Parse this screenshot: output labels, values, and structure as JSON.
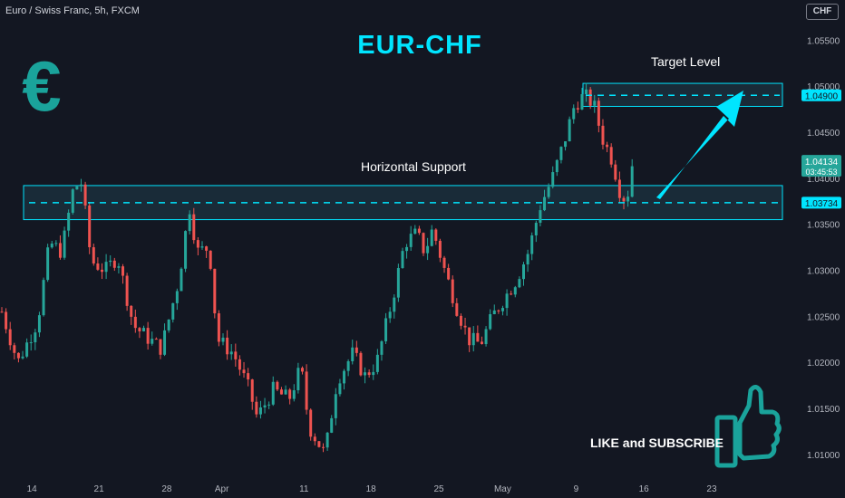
{
  "header": {
    "symbol": "Euro / Swiss Franc, 5h, FXCM",
    "currency": "CHF",
    "title": "EUR-CHF"
  },
  "annotations": {
    "support_label": "Horizontal Support",
    "target_label": "Target Level",
    "cta": "LIKE and SUBSCRIBE"
  },
  "icons": [
    "euro-icon",
    "thumbs-up-icon",
    "arrow-icon"
  ],
  "colors": {
    "background": "#131722",
    "up": "#26a69a",
    "down": "#ef5350",
    "accent": "#00e5ff",
    "zone_fill": "#1c3340",
    "euro_icon": "#1aa39b"
  },
  "chart_data": {
    "type": "candlestick",
    "title": "EUR-CHF",
    "y_ticks": [
      "1.05500",
      "1.05000",
      "1.04500",
      "1.04000",
      "1.03500",
      "1.03000",
      "1.02500",
      "1.02000",
      "1.01500",
      "1.01000"
    ],
    "ylim": [
      1.0095,
      1.0565
    ],
    "x_ticks": [
      {
        "label": "14",
        "t": 0.04
      },
      {
        "label": "21",
        "t": 0.124
      },
      {
        "label": "28",
        "t": 0.209
      },
      {
        "label": "Apr",
        "t": 0.278
      },
      {
        "label": "11",
        "t": 0.381
      },
      {
        "label": "18",
        "t": 0.465
      },
      {
        "label": "25",
        "t": 0.55
      },
      {
        "label": "May",
        "t": 0.63
      },
      {
        "label": "9",
        "t": 0.722
      },
      {
        "label": "16",
        "t": 0.807
      },
      {
        "label": "23",
        "t": 0.892
      }
    ],
    "support_level": 1.03734,
    "support_zone": [
      1.0355,
      1.0392
    ],
    "target_level": 1.049,
    "target_zone": [
      1.0478,
      1.0503
    ],
    "current_price": "1.04134",
    "countdown": "03:45:53",
    "anchors": [
      [
        0.0,
        1.0255
      ],
      [
        0.02,
        1.02
      ],
      [
        0.045,
        1.0245
      ],
      [
        0.06,
        1.033
      ],
      [
        0.075,
        1.032
      ],
      [
        0.09,
        1.039
      ],
      [
        0.1,
        1.0395
      ],
      [
        0.112,
        1.031
      ],
      [
        0.13,
        1.03
      ],
      [
        0.145,
        1.0315
      ],
      [
        0.165,
        1.024
      ],
      [
        0.185,
        1.0225
      ],
      [
        0.2,
        1.0215
      ],
      [
        0.222,
        1.029
      ],
      [
        0.235,
        1.037
      ],
      [
        0.245,
        1.032
      ],
      [
        0.26,
        1.0325
      ],
      [
        0.27,
        1.0225
      ],
      [
        0.29,
        1.021
      ],
      [
        0.31,
        1.017
      ],
      [
        0.32,
        1.014
      ],
      [
        0.34,
        1.017
      ],
      [
        0.36,
        1.016
      ],
      [
        0.375,
        1.0195
      ],
      [
        0.385,
        1.013
      ],
      [
        0.405,
        1.01
      ],
      [
        0.42,
        1.018
      ],
      [
        0.44,
        1.021
      ],
      [
        0.455,
        1.0185
      ],
      [
        0.47,
        1.02
      ],
      [
        0.49,
        1.027
      ],
      [
        0.505,
        1.033
      ],
      [
        0.52,
        1.034
      ],
      [
        0.53,
        1.032
      ],
      [
        0.54,
        1.0345
      ],
      [
        0.555,
        1.03
      ],
      [
        0.57,
        1.026
      ],
      [
        0.585,
        1.0225
      ],
      [
        0.6,
        1.022
      ],
      [
        0.615,
        1.025
      ],
      [
        0.63,
        1.027
      ],
      [
        0.645,
        1.029
      ],
      [
        0.66,
        1.032
      ],
      [
        0.675,
        1.037
      ],
      [
        0.69,
        1.04
      ],
      [
        0.705,
        1.044
      ],
      [
        0.718,
        1.048
      ],
      [
        0.73,
        1.049
      ],
      [
        0.742,
        1.048
      ],
      [
        0.752,
        1.0445
      ],
      [
        0.765,
        1.042
      ],
      [
        0.775,
        1.0385
      ],
      [
        0.783,
        1.0375
      ],
      [
        0.79,
        1.0413
      ]
    ]
  }
}
